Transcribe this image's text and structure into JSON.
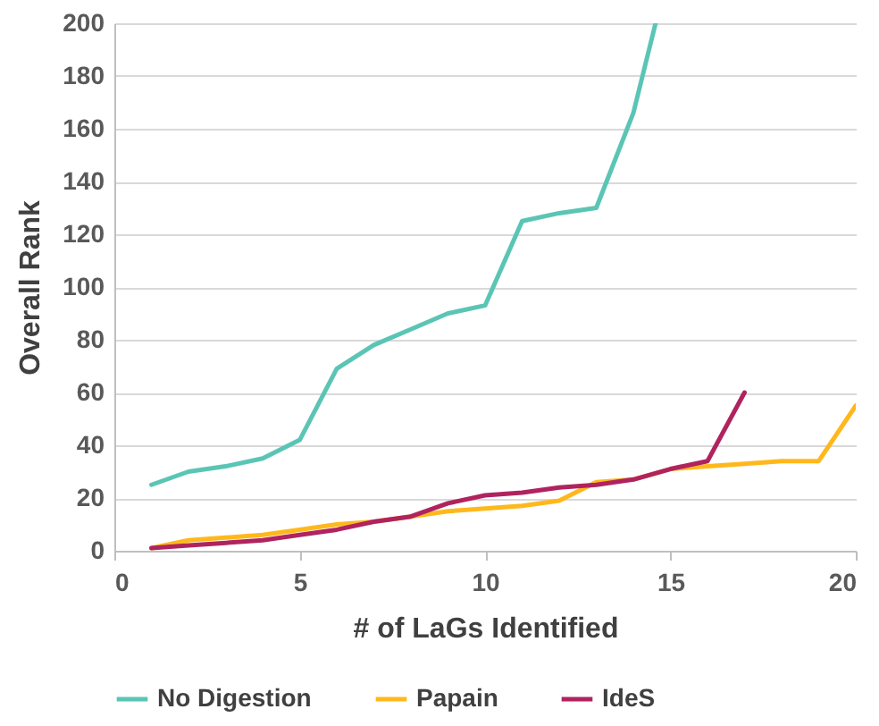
{
  "chart_data": {
    "type": "line",
    "xlabel": "# of LaGs Identified",
    "ylabel": "Overall Rank",
    "xlim": [
      0,
      20
    ],
    "xticks": [
      0,
      5,
      10,
      15,
      20
    ],
    "ylim": [
      0,
      200
    ],
    "yticks": [
      0,
      20,
      40,
      60,
      80,
      100,
      120,
      140,
      160,
      180,
      200
    ],
    "grid": "y",
    "legend": "bottom",
    "marker": "none",
    "line_style": "solid",
    "series": [
      {
        "name": "No Digestion",
        "color": "#5bc5b5",
        "x": [
          1,
          2,
          3,
          4,
          5,
          6,
          7,
          8,
          9,
          10,
          11,
          12,
          13,
          14,
          14.6
        ],
        "values": [
          25,
          30,
          32,
          35,
          42,
          69,
          78,
          84,
          90,
          93,
          125,
          128,
          130,
          166,
          200
        ]
      },
      {
        "name": "Papain",
        "color": "#ffb81c",
        "x": [
          1,
          2,
          3,
          4,
          5,
          6,
          7,
          8,
          9,
          10,
          11,
          12,
          13,
          14,
          15,
          16,
          17,
          18,
          19,
          20
        ],
        "values": [
          1,
          4,
          5,
          6,
          8,
          10,
          11,
          13,
          15,
          16,
          17,
          19,
          26,
          27,
          31,
          32,
          33,
          34,
          34,
          55
        ]
      },
      {
        "name": "IdeS",
        "color": "#b0235f",
        "x": [
          1,
          2,
          3,
          4,
          5,
          6,
          7,
          8,
          9,
          10,
          11,
          12,
          13,
          14,
          15,
          16,
          17
        ],
        "values": [
          1,
          2,
          3,
          4,
          6,
          8,
          11,
          13,
          18,
          21,
          22,
          24,
          25,
          27,
          31,
          34,
          60
        ]
      }
    ]
  }
}
